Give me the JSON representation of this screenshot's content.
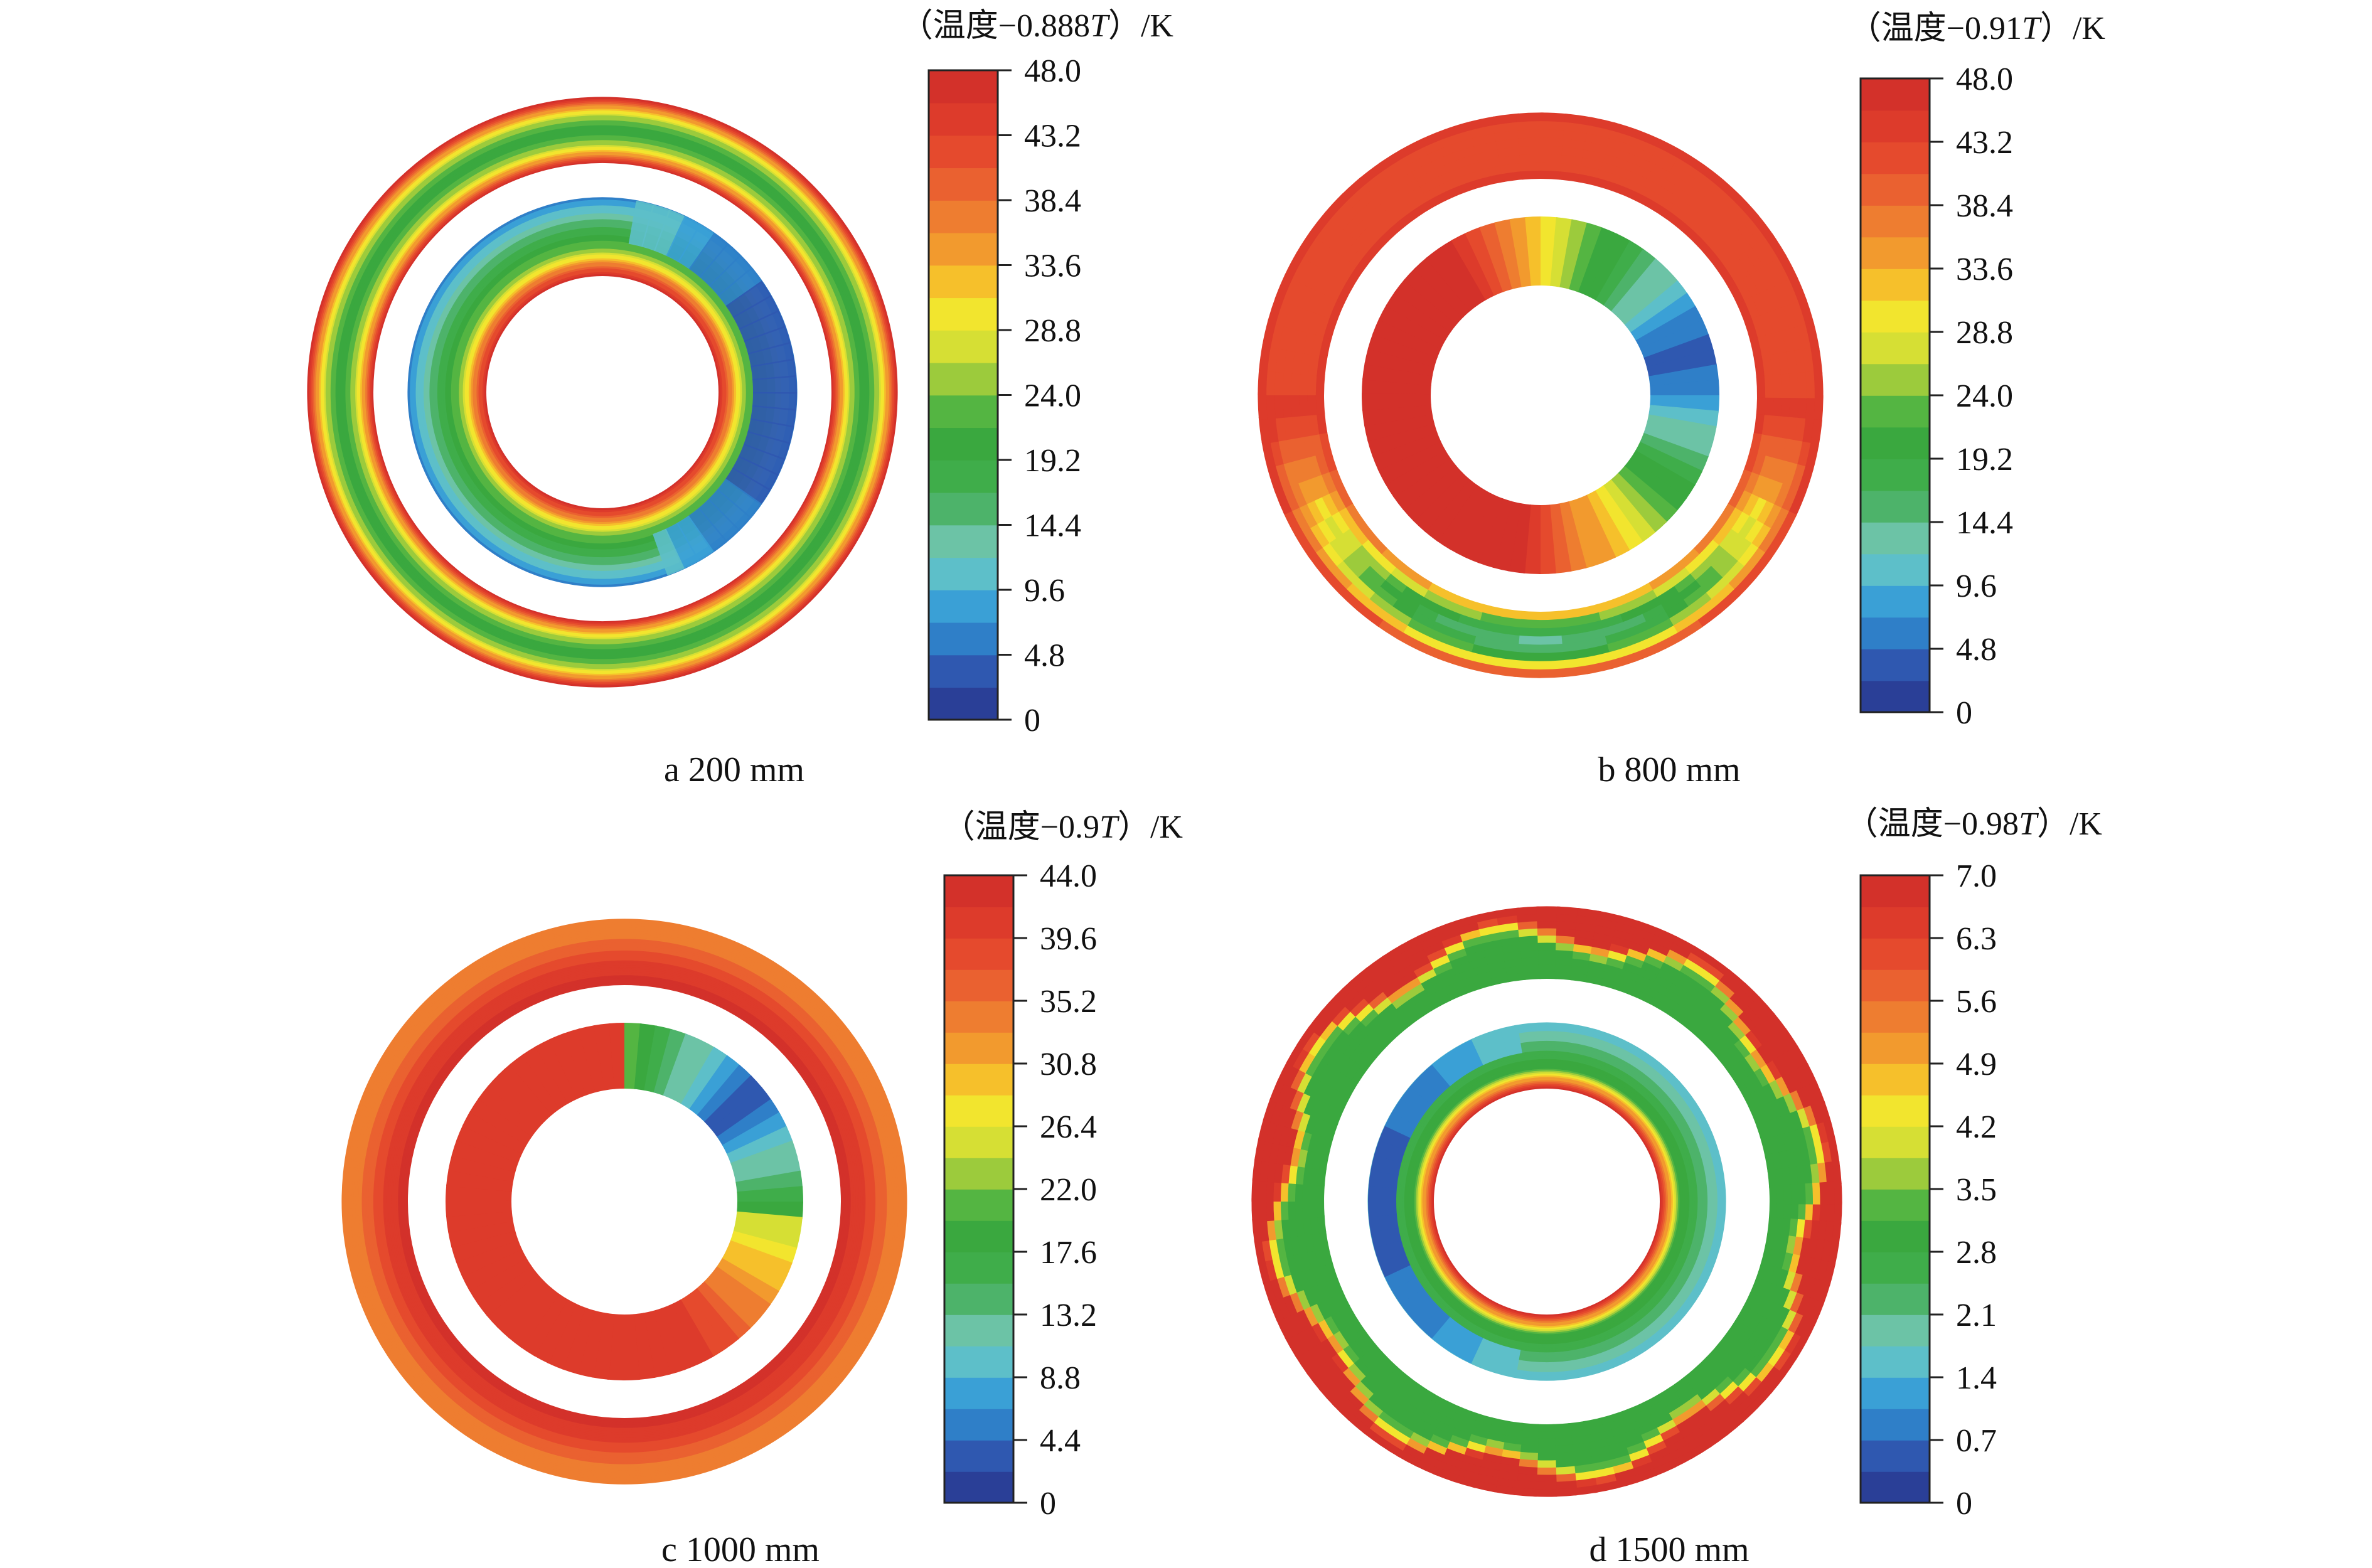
{
  "panels": [
    {
      "id": "a",
      "caption": "a  200 mm",
      "unit_title": {
        "prefix": "（温度−0.888",
        "var": "T",
        "suffix": "）/K"
      },
      "ticks": [
        "48.0",
        "43.2",
        "38.4",
        "33.6",
        "28.8",
        "24.0",
        "19.2",
        "14.4",
        "9.6",
        "4.8",
        "0"
      ],
      "pattern": "concentric"
    },
    {
      "id": "b",
      "caption": "b  800 mm",
      "unit_title": {
        "prefix": "（温度−0.91",
        "var": "T",
        "suffix": "）/K"
      },
      "ticks": [
        "48.0",
        "43.2",
        "38.4",
        "33.6",
        "28.8",
        "24.0",
        "19.2",
        "14.4",
        "9.6",
        "4.8",
        "0"
      ],
      "pattern": "sector"
    },
    {
      "id": "c",
      "caption": "c  1000 mm",
      "unit_title": {
        "prefix": "（温度−0.9",
        "var": "T",
        "suffix": "）/K"
      },
      "ticks": [
        "44.0",
        "39.6",
        "35.2",
        "30.8",
        "26.4",
        "22.0",
        "17.6",
        "13.2",
        "8.8",
        "4.4",
        "0"
      ],
      "pattern": "hot"
    },
    {
      "id": "d",
      "caption": "d  1500 mm",
      "unit_title": {
        "prefix": "（温度−0.98",
        "var": "T",
        "suffix": "）/K"
      },
      "ticks": [
        "7.0",
        "6.3",
        "5.6",
        "4.9",
        "4.2",
        "3.5",
        "2.8",
        "2.1",
        "1.4",
        "0.7",
        "0"
      ],
      "pattern": "wavy"
    }
  ],
  "colormap": [
    "#2a3f97",
    "#2f58b0",
    "#2f7fc8",
    "#3aa0d6",
    "#5dbfc9",
    "#6cc3a6",
    "#4db36a",
    "#3fad4a",
    "#3aa83f",
    "#54b542",
    "#9ccb3c",
    "#d6df34",
    "#f2e52e",
    "#f6c02b",
    "#f29a2e",
    "#ee7d30",
    "#ea6130",
    "#e54a2d",
    "#dd3b2b",
    "#d3312a"
  ]
}
